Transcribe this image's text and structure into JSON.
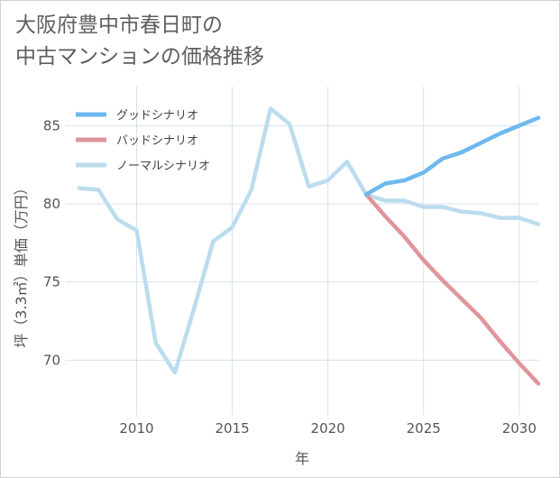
{
  "title": {
    "line1": "大阪府豊中市春日町の",
    "line2": "中古マンションの価格推移"
  },
  "chart_data": {
    "type": "line",
    "title": "大阪府豊中市春日町の中古マンションの価格推移",
    "xlabel": "年",
    "ylabel": "坪（3.3㎡）単価（万円）",
    "xlim": [
      2006.3,
      2031
    ],
    "ylim": [
      66.5,
      87.5
    ],
    "xticks": [
      2010,
      2015,
      2020,
      2025,
      2030
    ],
    "yticks": [
      70,
      75,
      80,
      85
    ],
    "grid": true,
    "legend_position": "top-left",
    "series": [
      {
        "name": "グッドシナリオ",
        "color": "#6db8ee",
        "x": [
          2022,
          2023,
          2024,
          2025,
          2026,
          2027,
          2028,
          2029,
          2030,
          2031
        ],
        "values": [
          80.6,
          81.3,
          81.5,
          82.0,
          82.9,
          83.3,
          83.9,
          84.5,
          85.0,
          85.5
        ]
      },
      {
        "name": "バッドシナリオ",
        "color": "#e0949c",
        "x": [
          2022,
          2023,
          2024,
          2025,
          2026,
          2027,
          2028,
          2029,
          2030,
          2031
        ],
        "values": [
          80.6,
          79.2,
          77.9,
          76.4,
          75.1,
          73.9,
          72.7,
          71.2,
          69.8,
          68.5
        ]
      },
      {
        "name": "ノーマルシナリオ",
        "color": "#bcdcee",
        "x": [
          2007,
          2008,
          2009,
          2010,
          2011,
          2012,
          2013,
          2014,
          2015,
          2016,
          2017,
          2018,
          2019,
          2020,
          2021,
          2022,
          2023,
          2024,
          2025,
          2026,
          2027,
          2028,
          2029,
          2030,
          2031
        ],
        "values": [
          81.0,
          80.9,
          79.0,
          78.3,
          71.1,
          69.2,
          73.3,
          77.6,
          78.5,
          80.9,
          86.1,
          85.1,
          81.1,
          81.5,
          82.7,
          80.6,
          80.2,
          80.2,
          79.8,
          79.8,
          79.5,
          79.4,
          79.1,
          79.1,
          78.7
        ]
      }
    ]
  }
}
